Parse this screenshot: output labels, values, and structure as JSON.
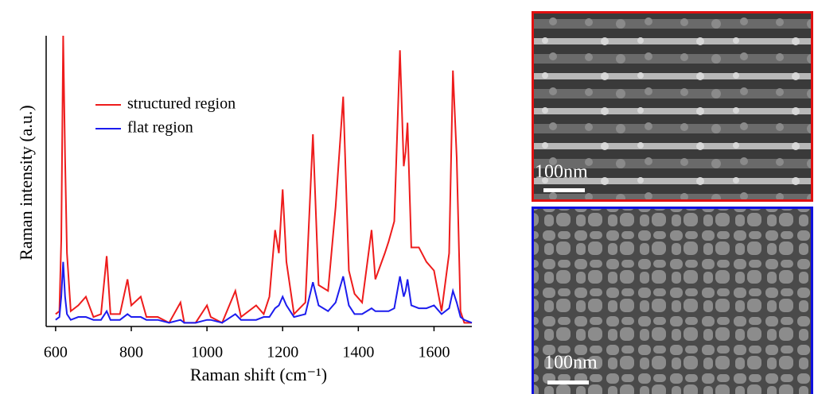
{
  "chart_data": {
    "type": "line",
    "x_label": "Raman shift (cm⁻¹)",
    "y_label": "Raman intensity (a.u.)",
    "x": [
      600,
      610,
      615,
      620,
      625,
      630,
      640,
      660,
      680,
      700,
      720,
      735,
      745,
      770,
      790,
      800,
      825,
      840,
      870,
      900,
      930,
      940,
      970,
      1000,
      1010,
      1040,
      1075,
      1090,
      1130,
      1150,
      1165,
      1180,
      1190,
      1200,
      1210,
      1230,
      1260,
      1280,
      1295,
      1320,
      1340,
      1360,
      1375,
      1390,
      1410,
      1435,
      1445,
      1470,
      1480,
      1495,
      1510,
      1520,
      1525,
      1530,
      1540,
      1560,
      1580,
      1600,
      1620,
      1640,
      1650,
      1660,
      1670,
      1680,
      1700
    ],
    "series": [
      {
        "name": "structured region",
        "color": "#ee1c1c",
        "values": [
          0.04,
          0.05,
          0.3,
          1.0,
          0.58,
          0.25,
          0.05,
          0.07,
          0.1,
          0.03,
          0.04,
          0.24,
          0.04,
          0.04,
          0.16,
          0.07,
          0.1,
          0.03,
          0.03,
          0.01,
          0.08,
          0.01,
          0.01,
          0.07,
          0.03,
          0.01,
          0.12,
          0.03,
          0.07,
          0.04,
          0.1,
          0.33,
          0.25,
          0.47,
          0.22,
          0.04,
          0.08,
          0.66,
          0.14,
          0.12,
          0.41,
          0.79,
          0.19,
          0.11,
          0.08,
          0.33,
          0.16,
          0.25,
          0.29,
          0.36,
          0.95,
          0.55,
          0.6,
          0.7,
          0.27,
          0.27,
          0.22,
          0.19,
          0.05,
          0.25,
          0.88,
          0.58,
          0.05,
          0.01,
          0.01
        ]
      },
      {
        "name": "flat region",
        "color": "#1c1cee",
        "values": [
          0.02,
          0.03,
          0.1,
          0.22,
          0.1,
          0.04,
          0.02,
          0.03,
          0.03,
          0.02,
          0.02,
          0.05,
          0.02,
          0.02,
          0.04,
          0.03,
          0.03,
          0.02,
          0.02,
          0.01,
          0.02,
          0.01,
          0.01,
          0.02,
          0.02,
          0.01,
          0.04,
          0.02,
          0.02,
          0.03,
          0.03,
          0.06,
          0.07,
          0.1,
          0.07,
          0.03,
          0.04,
          0.15,
          0.07,
          0.05,
          0.08,
          0.17,
          0.07,
          0.04,
          0.04,
          0.06,
          0.05,
          0.05,
          0.05,
          0.06,
          0.17,
          0.1,
          0.12,
          0.16,
          0.07,
          0.06,
          0.06,
          0.07,
          0.04,
          0.06,
          0.12,
          0.08,
          0.03,
          0.02,
          0.01
        ]
      }
    ],
    "xlim": [
      575,
      1700
    ],
    "xticks": [
      600,
      800,
      1000,
      1200,
      1400,
      1600
    ],
    "ylim": [
      0,
      1
    ]
  },
  "scale_bars": [
    "100nm",
    "100nm"
  ]
}
